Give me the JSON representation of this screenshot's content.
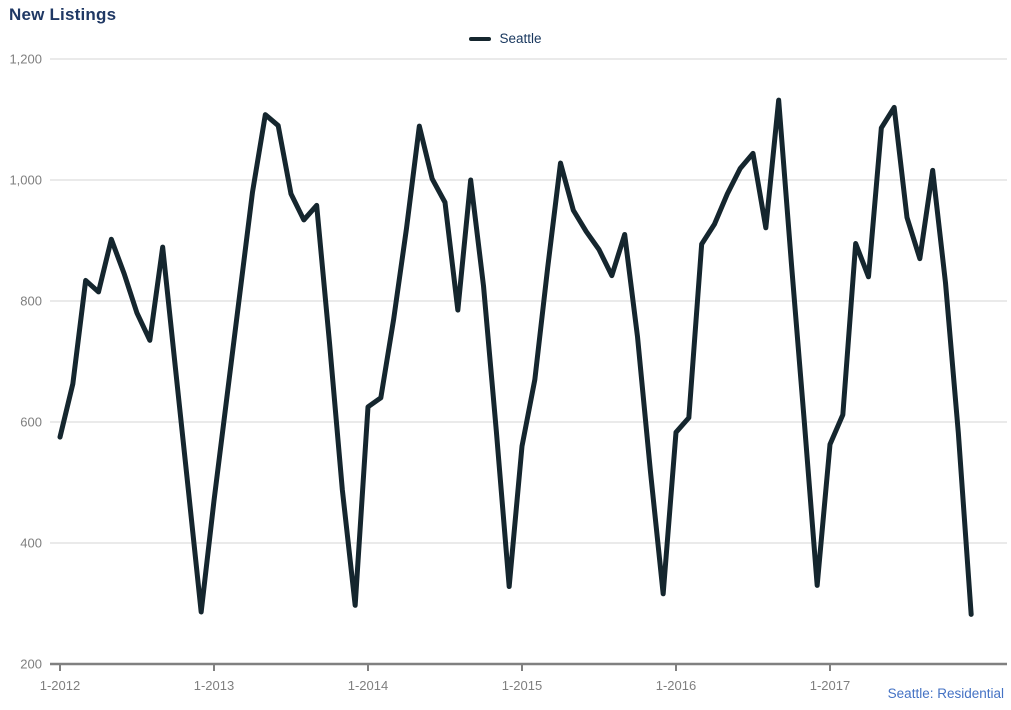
{
  "page": {
    "title": "New Listings"
  },
  "legend": {
    "items": [
      {
        "label": "Seattle"
      }
    ]
  },
  "footer": {
    "label": "Seattle: Residential"
  },
  "colors": {
    "series": "#15262E",
    "grid": "#D6D6D6",
    "axis": "#808080",
    "axis_text": "#7F7F7F",
    "title_text": "#1F3864",
    "legend_text": "#17365D",
    "footer_text": "#4472C4",
    "background": "#FFFFFF"
  },
  "chart_data": {
    "type": "line",
    "title": "New Listings",
    "legend_entries": [
      "Seattle"
    ],
    "legend_position": "top-center",
    "annotation": "Seattle: Residential",
    "grid": "horizontal",
    "x_axis": {
      "unit": "month",
      "tick_labels": [
        "1-2012",
        "1-2013",
        "1-2014",
        "1-2015",
        "1-2016",
        "1-2017"
      ],
      "months_per_tick": 12
    },
    "y_axis": {
      "min": 200,
      "max": 1200,
      "tick_step": 200,
      "tick_labels": [
        "200",
        "400",
        "600",
        "800",
        "1,000",
        "1,200"
      ]
    },
    "series": [
      {
        "name": "Seattle",
        "start": "Jan 2012",
        "frequency": "monthly",
        "values": [
          575,
          663,
          834,
          815,
          902,
          845,
          780,
          735,
          889,
          688,
          488,
          286,
          470,
          640,
          810,
          980,
          1108,
          1090,
          977,
          934,
          958,
          731,
          488,
          297,
          625,
          640,
          770,
          920,
          1089,
          1002,
          963,
          785,
          1000,
          825,
          585,
          328,
          560,
          670,
          855,
          1028,
          950,
          915,
          885,
          842,
          910,
          741,
          520,
          316,
          583,
          607,
          894,
          927,
          977,
          1019,
          1044,
          921,
          1132,
          860,
          600,
          330,
          563,
          612,
          895,
          840,
          1086,
          1120,
          938,
          870,
          1016,
          830,
          582,
          282
        ]
      }
    ]
  }
}
